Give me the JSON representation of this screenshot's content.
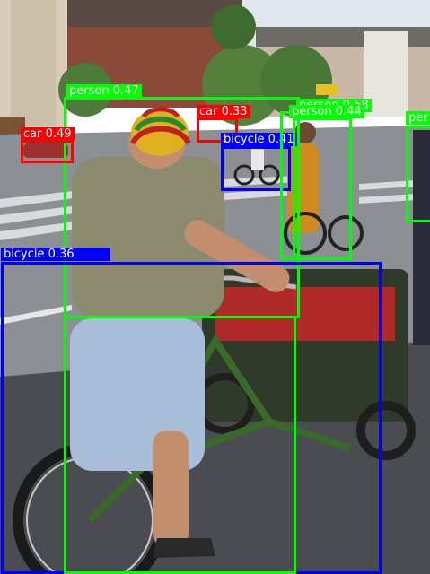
{
  "image": {
    "description_colors": {
      "sky": "#dfe6ee",
      "road": "#8c8f94",
      "shadow": "#3c3d42",
      "building_brick": "#8a4a3a",
      "trees": "#4e7a3a"
    }
  },
  "detections": [
    {
      "label": "person",
      "score": "0.47",
      "color": "#00ff00",
      "text_color": "#ffffff"
    },
    {
      "label": "car",
      "score": "0.49",
      "color": "#ff0000",
      "text_color": "#ffffff"
    },
    {
      "label": "car",
      "score": "0.33",
      "color": "#ff0000",
      "text_color": "#ffffff"
    },
    {
      "label": "bicycle",
      "score": "0.41",
      "color": "#0000ff",
      "text_color": "#ffffff"
    },
    {
      "label": "person",
      "score": "0.58",
      "color": "#00ff00",
      "text_color": "#ffffff"
    },
    {
      "label": "person",
      "score": "0.44",
      "color": "#00ff00",
      "text_color": "#ffffff"
    },
    {
      "label": "person",
      "score": "",
      "color": "#00ff00",
      "text_color": "#ffffff",
      "truncated_label": "per"
    },
    {
      "label": "bicycle",
      "score": "0.36",
      "color": "#0000ff",
      "text_color": "#ffffff"
    }
  ]
}
